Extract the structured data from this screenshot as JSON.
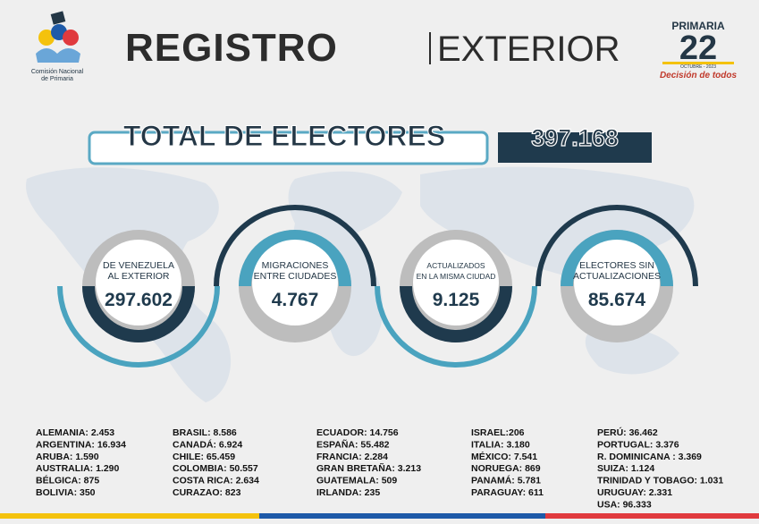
{
  "header": {
    "org_name": [
      "Comisión Nacional",
      "de Primaria"
    ],
    "title_bold": "REGISTRO",
    "title_light": "EXTERIOR",
    "logo": {
      "top": "PRIMARIA",
      "number": "22",
      "date": "OCTUBRE - 2023",
      "slogan": "Decisión de todos"
    }
  },
  "total": {
    "label": "TOTAL DE ELECTORES",
    "value": "397.168"
  },
  "circles": [
    {
      "label": [
        "DE VENEZUELA",
        "AL EXTERIOR"
      ],
      "value": "297.602"
    },
    {
      "label": [
        "MIGRACIONES",
        "ENTRE CIUDADES"
      ],
      "value": "4.767"
    },
    {
      "label": [
        "ACTUALIZADOS",
        "EN LA MISMA CIUDAD"
      ],
      "value": "9.125"
    },
    {
      "label": [
        "ELECTORES SIN",
        "ACTUALIZACIONES"
      ],
      "value": "85.674"
    }
  ],
  "countries": [
    [
      "ALEMANIA: 2.453",
      "ARGENTINA: 16.934",
      "ARUBA: 1.590",
      "AUSTRALIA: 1.290",
      "BÉLGICA: 875",
      "BOLIVIA: 350"
    ],
    [
      "BRASIL: 8.586",
      "CANADÁ: 6.924",
      "CHILE: 65.459",
      "COLOMBIA: 50.557",
      "COSTA RICA: 2.634",
      "CURAZAO: 823"
    ],
    [
      "ECUADOR: 14.756",
      "ESPAÑA: 55.482",
      "FRANCIA: 2.284",
      "GRAN BRETAÑA: 3.213",
      "GUATEMALA: 509",
      "IRLANDA: 235"
    ],
    [
      "ISRAEL:206",
      "ITALIA: 3.180",
      "MÉXICO: 7.541",
      "NORUEGA: 869",
      "PANAMÁ: 5.781",
      "PARAGUAY: 611"
    ],
    [
      "PERÚ: 36.462",
      "PORTUGAL: 3.376",
      "R. DOMINICANA : 3.369",
      "SUIZA: 1.124",
      "TRINIDAD Y TOBAGO: 1.031",
      "URUGUAY: 2.331",
      "USA: 96.333"
    ]
  ]
}
